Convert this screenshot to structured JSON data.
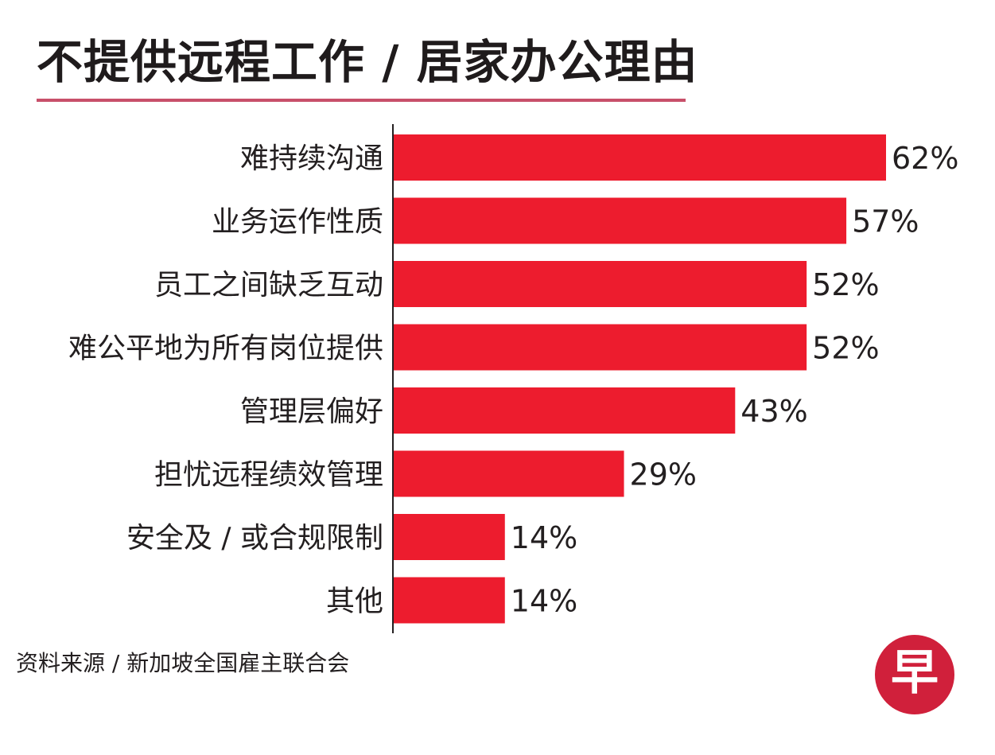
{
  "title": "不提供远程工作 / 居家办公理由",
  "source": "资料来源 / 新加坡全国雇主联合会",
  "logo": {
    "text": "早",
    "color": "#d0203b"
  },
  "colors": {
    "bar": "#ed1c2e",
    "title_rule": "#c8506a",
    "axis": "#231f20",
    "text": "#231f20"
  },
  "chart_data": {
    "type": "bar",
    "orientation": "horizontal",
    "categories": [
      "难持续沟通",
      "业务运作性质",
      "员工之间缺乏互动",
      "难公平地为所有岗位提供",
      "管理层偏好",
      "担忧远程绩效管理",
      "安全及 / 或合规限制",
      "其他"
    ],
    "values": [
      62,
      57,
      52,
      52,
      43,
      29,
      14,
      14
    ],
    "value_labels": [
      "62%",
      "57%",
      "52%",
      "52%",
      "43%",
      "29%",
      "14%",
      "14%"
    ],
    "unit": "%",
    "xlim": [
      0,
      62
    ],
    "grid": false,
    "legend": "none"
  }
}
